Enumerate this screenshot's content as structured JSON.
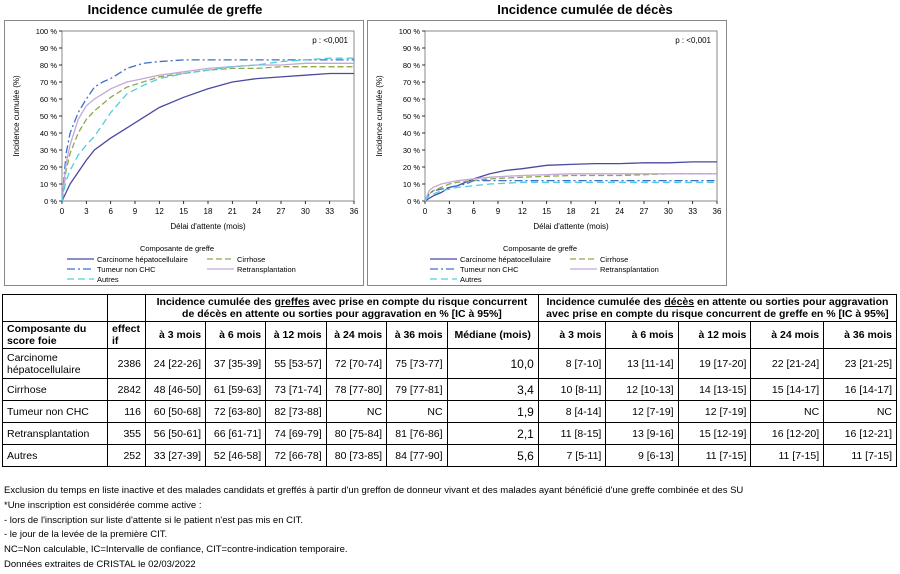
{
  "chart_data": [
    {
      "type": "line",
      "title": "Incidence cumulée de greffe",
      "annotation": "p : <0,001",
      "xlabel": "Délai d'attente (mois)",
      "ylabel": "Incidence cumulée (%)",
      "xticks": [
        "0",
        "3",
        "6",
        "9",
        "12",
        "15",
        "18",
        "21",
        "24",
        "27",
        "30",
        "33",
        "36"
      ],
      "yticks": [
        "0 %",
        "10 %",
        "20 %",
        "30 %",
        "40 %",
        "50 %",
        "60 %",
        "70 %",
        "80 %",
        "90 %",
        "100 %"
      ],
      "xlim": [
        0,
        36
      ],
      "ylim": [
        0,
        100
      ],
      "legend_title": "Composante de greffe",
      "series": [
        {
          "name": "Carcinome hépatocellulaire",
          "color": "#4a4aa0",
          "dash": "",
          "x": [
            0,
            1,
            2,
            3,
            4,
            6,
            8,
            10,
            12,
            15,
            18,
            21,
            24,
            27,
            30,
            33,
            36
          ],
          "y": [
            0,
            10,
            17,
            24,
            30,
            37,
            43,
            49,
            55,
            61,
            66,
            70,
            72,
            73,
            74,
            75,
            75
          ]
        },
        {
          "name": "Cirrhose",
          "color": "#8ea84a",
          "dash": "6,3",
          "x": [
            0,
            0.5,
            1,
            2,
            3,
            4,
            6,
            8,
            10,
            12,
            15,
            18,
            21,
            24,
            27,
            30,
            33,
            36
          ],
          "y": [
            0,
            18,
            28,
            40,
            48,
            53,
            61,
            67,
            70,
            73,
            75,
            77,
            78,
            78,
            79,
            79,
            79,
            79
          ]
        },
        {
          "name": "Tumeur non CHC",
          "color": "#3d6fc9",
          "dash": "8,3,2,3",
          "x": [
            0,
            0.5,
            1,
            2,
            3,
            4,
            5,
            6,
            8,
            10,
            12,
            15,
            18,
            21,
            24,
            27,
            30,
            33,
            36
          ],
          "y": [
            0,
            28,
            40,
            52,
            60,
            67,
            70,
            72,
            78,
            81,
            82,
            83,
            83,
            83,
            83,
            83,
            83,
            83,
            83
          ]
        },
        {
          "name": "Retransplantation",
          "color": "#c3a8d8",
          "dash": "",
          "x": [
            0,
            0.5,
            1,
            2,
            3,
            4,
            5,
            6,
            8,
            10,
            12,
            15,
            18,
            21,
            24,
            27,
            30,
            33,
            36
          ],
          "y": [
            0,
            22,
            33,
            48,
            56,
            60,
            63,
            66,
            70,
            72,
            74,
            76,
            78,
            79,
            80,
            80,
            81,
            81,
            81
          ]
        },
        {
          "name": "Autres",
          "color": "#4ecfe0",
          "dash": "7,4",
          "x": [
            0,
            0.5,
            1,
            2,
            3,
            4,
            5,
            6,
            8,
            10,
            12,
            15,
            18,
            21,
            24,
            27,
            30,
            33,
            36
          ],
          "y": [
            0,
            12,
            18,
            27,
            33,
            38,
            45,
            52,
            63,
            68,
            72,
            75,
            77,
            79,
            80,
            82,
            83,
            84,
            84
          ]
        }
      ]
    },
    {
      "type": "line",
      "title": "Incidence cumulée de décès",
      "annotation": "p : <0,001",
      "xlabel": "Délai d'attente (mois)",
      "ylabel": "Incidence cumulée (%)",
      "xticks": [
        "0",
        "3",
        "6",
        "9",
        "12",
        "15",
        "18",
        "21",
        "24",
        "27",
        "30",
        "33",
        "36"
      ],
      "yticks": [
        "0 %",
        "10 %",
        "20 %",
        "30 %",
        "40 %",
        "50 %",
        "60 %",
        "70 %",
        "80 %",
        "90 %",
        "100 %"
      ],
      "xlim": [
        0,
        36
      ],
      "ylim": [
        0,
        100
      ],
      "legend_title": "Composante de greffe",
      "series": [
        {
          "name": "Carcinome hépatocellulaire",
          "color": "#4a4aa0",
          "dash": "",
          "x": [
            0,
            1,
            2,
            3,
            4,
            6,
            8,
            10,
            12,
            15,
            18,
            21,
            24,
            27,
            30,
            33,
            36
          ],
          "y": [
            0,
            3,
            5,
            8,
            9,
            13,
            16,
            18,
            19,
            21,
            21.5,
            22,
            22,
            22.5,
            22.5,
            23,
            23
          ]
        },
        {
          "name": "Cirrhose",
          "color": "#8ea84a",
          "dash": "6,3",
          "x": [
            0,
            0.5,
            1,
            2,
            3,
            4,
            6,
            8,
            10,
            12,
            15,
            18,
            21,
            24,
            27,
            30,
            33,
            36
          ],
          "y": [
            0,
            4,
            6,
            8,
            10,
            11,
            12,
            13,
            13.5,
            14,
            14.5,
            15,
            15,
            15,
            15.5,
            16,
            16,
            16
          ]
        },
        {
          "name": "Tumeur non CHC",
          "color": "#3d6fc9",
          "dash": "8,3,2,3",
          "x": [
            0,
            0.5,
            1,
            2,
            3,
            4,
            5,
            6,
            8,
            10,
            12,
            15,
            18,
            21,
            24,
            27,
            30,
            33,
            36
          ],
          "y": [
            0,
            4,
            6,
            7,
            8,
            9,
            10,
            12,
            12,
            12,
            12,
            12,
            12,
            12,
            12,
            12,
            12,
            12,
            12
          ]
        },
        {
          "name": "Retransplantation",
          "color": "#c3a8d8",
          "dash": "",
          "x": [
            0,
            0.5,
            1,
            2,
            3,
            4,
            5,
            6,
            8,
            10,
            12,
            15,
            18,
            21,
            24,
            27,
            30,
            33,
            36
          ],
          "y": [
            0,
            6,
            8,
            10,
            11,
            12,
            12.5,
            13,
            14,
            14.5,
            15,
            15.5,
            16,
            16,
            16,
            16,
            16,
            16,
            16
          ]
        },
        {
          "name": "Autres",
          "color": "#4ecfe0",
          "dash": "7,4",
          "x": [
            0,
            0.5,
            1,
            2,
            3,
            4,
            5,
            6,
            8,
            10,
            12,
            15,
            18,
            21,
            24,
            27,
            30,
            33,
            36
          ],
          "y": [
            0,
            3,
            4,
            6,
            7,
            8,
            8.5,
            9,
            10,
            10.5,
            11,
            11,
            11,
            11,
            11,
            11,
            11,
            11,
            11
          ]
        }
      ]
    }
  ],
  "table": {
    "col_component": "Composante du score foie",
    "col_effectif": "effectif",
    "greffe_header_pre": "Incidence cumulée des ",
    "greffe_header_u": "greffes",
    "greffe_header_post": " avec prise en compte du risque concurrent de décès en attente ou sorties pour aggravation en % [IC à 95%]",
    "deces_header_pre": "Incidence cumulée des ",
    "deces_header_u": "décès",
    "deces_header_post": " en attente ou sorties pour aggravation avec prise en compte du risque concurrent de greffe en % [IC à 95%]",
    "greffe_cols": [
      "à 3 mois",
      "à 6 mois",
      "à 12 mois",
      "à 24 mois",
      "à 36 mois",
      "Médiane (mois)"
    ],
    "deces_cols": [
      "à 3 mois",
      "à 6 mois",
      "à 12 mois",
      "à 24 mois",
      "à 36 mois"
    ],
    "rows": [
      {
        "name": "Carcinome hépatocellulaire",
        "n": "2386",
        "g": [
          "24 [22-26]",
          "37 [35-39]",
          "55 [53-57]",
          "72 [70-74]",
          "75 [73-77]"
        ],
        "med": "10,0",
        "d": [
          "8 [7-10]",
          "13 [11-14]",
          "19 [17-20]",
          "22 [21-24]",
          "23 [21-25]"
        ]
      },
      {
        "name": "Cirrhose",
        "n": "2842",
        "g": [
          "48 [46-50]",
          "61 [59-63]",
          "73 [71-74]",
          "78 [77-80]",
          "79 [77-81]"
        ],
        "med": "3,4",
        "d": [
          "10 [8-11]",
          "12 [10-13]",
          "14 [13-15]",
          "15 [14-17]",
          "16 [14-17]"
        ]
      },
      {
        "name": "Tumeur non CHC",
        "n": "116",
        "g": [
          "60 [50-68]",
          "72 [63-80]",
          "82 [73-88]",
          "NC",
          "NC"
        ],
        "med": "1,9",
        "d": [
          "8 [4-14]",
          "12 [7-19]",
          "12 [7-19]",
          "NC",
          "NC"
        ]
      },
      {
        "name": "Retransplantation",
        "n": "355",
        "g": [
          "56 [50-61]",
          "66 [61-71]",
          "74 [69-79]",
          "80 [75-84]",
          "81 [76-86]"
        ],
        "med": "2,1",
        "d": [
          "11 [8-15]",
          "13 [9-16]",
          "15 [12-19]",
          "16 [12-20]",
          "16 [12-21]"
        ]
      },
      {
        "name": "Autres",
        "n": "252",
        "g": [
          "33 [27-39]",
          "52 [46-58]",
          "72 [66-78]",
          "80 [73-85]",
          "84 [77-90]"
        ],
        "med": "5,6",
        "d": [
          "7 [5-11]",
          "9 [6-13]",
          "11 [7-15]",
          "11 [7-15]",
          "11 [7-15]"
        ]
      }
    ]
  },
  "notes": [
    "Exclusion du temps en liste inactive et des malades candidats et greffés à partir d'un greffon de donneur vivant et des malades ayant bénéficié d'une greffe combinée et des SU",
    "*Une inscription est considérée comme active :",
    "- lors de l'inscription sur liste d'attente si le patient n'est pas mis en CIT.",
    "- le jour de la levée de la première CIT.",
    "NC=Non calculable, IC=Intervalle de confiance, CIT=contre-indication temporaire.",
    "Données extraites de CRISTAL le 02/03/2022"
  ]
}
